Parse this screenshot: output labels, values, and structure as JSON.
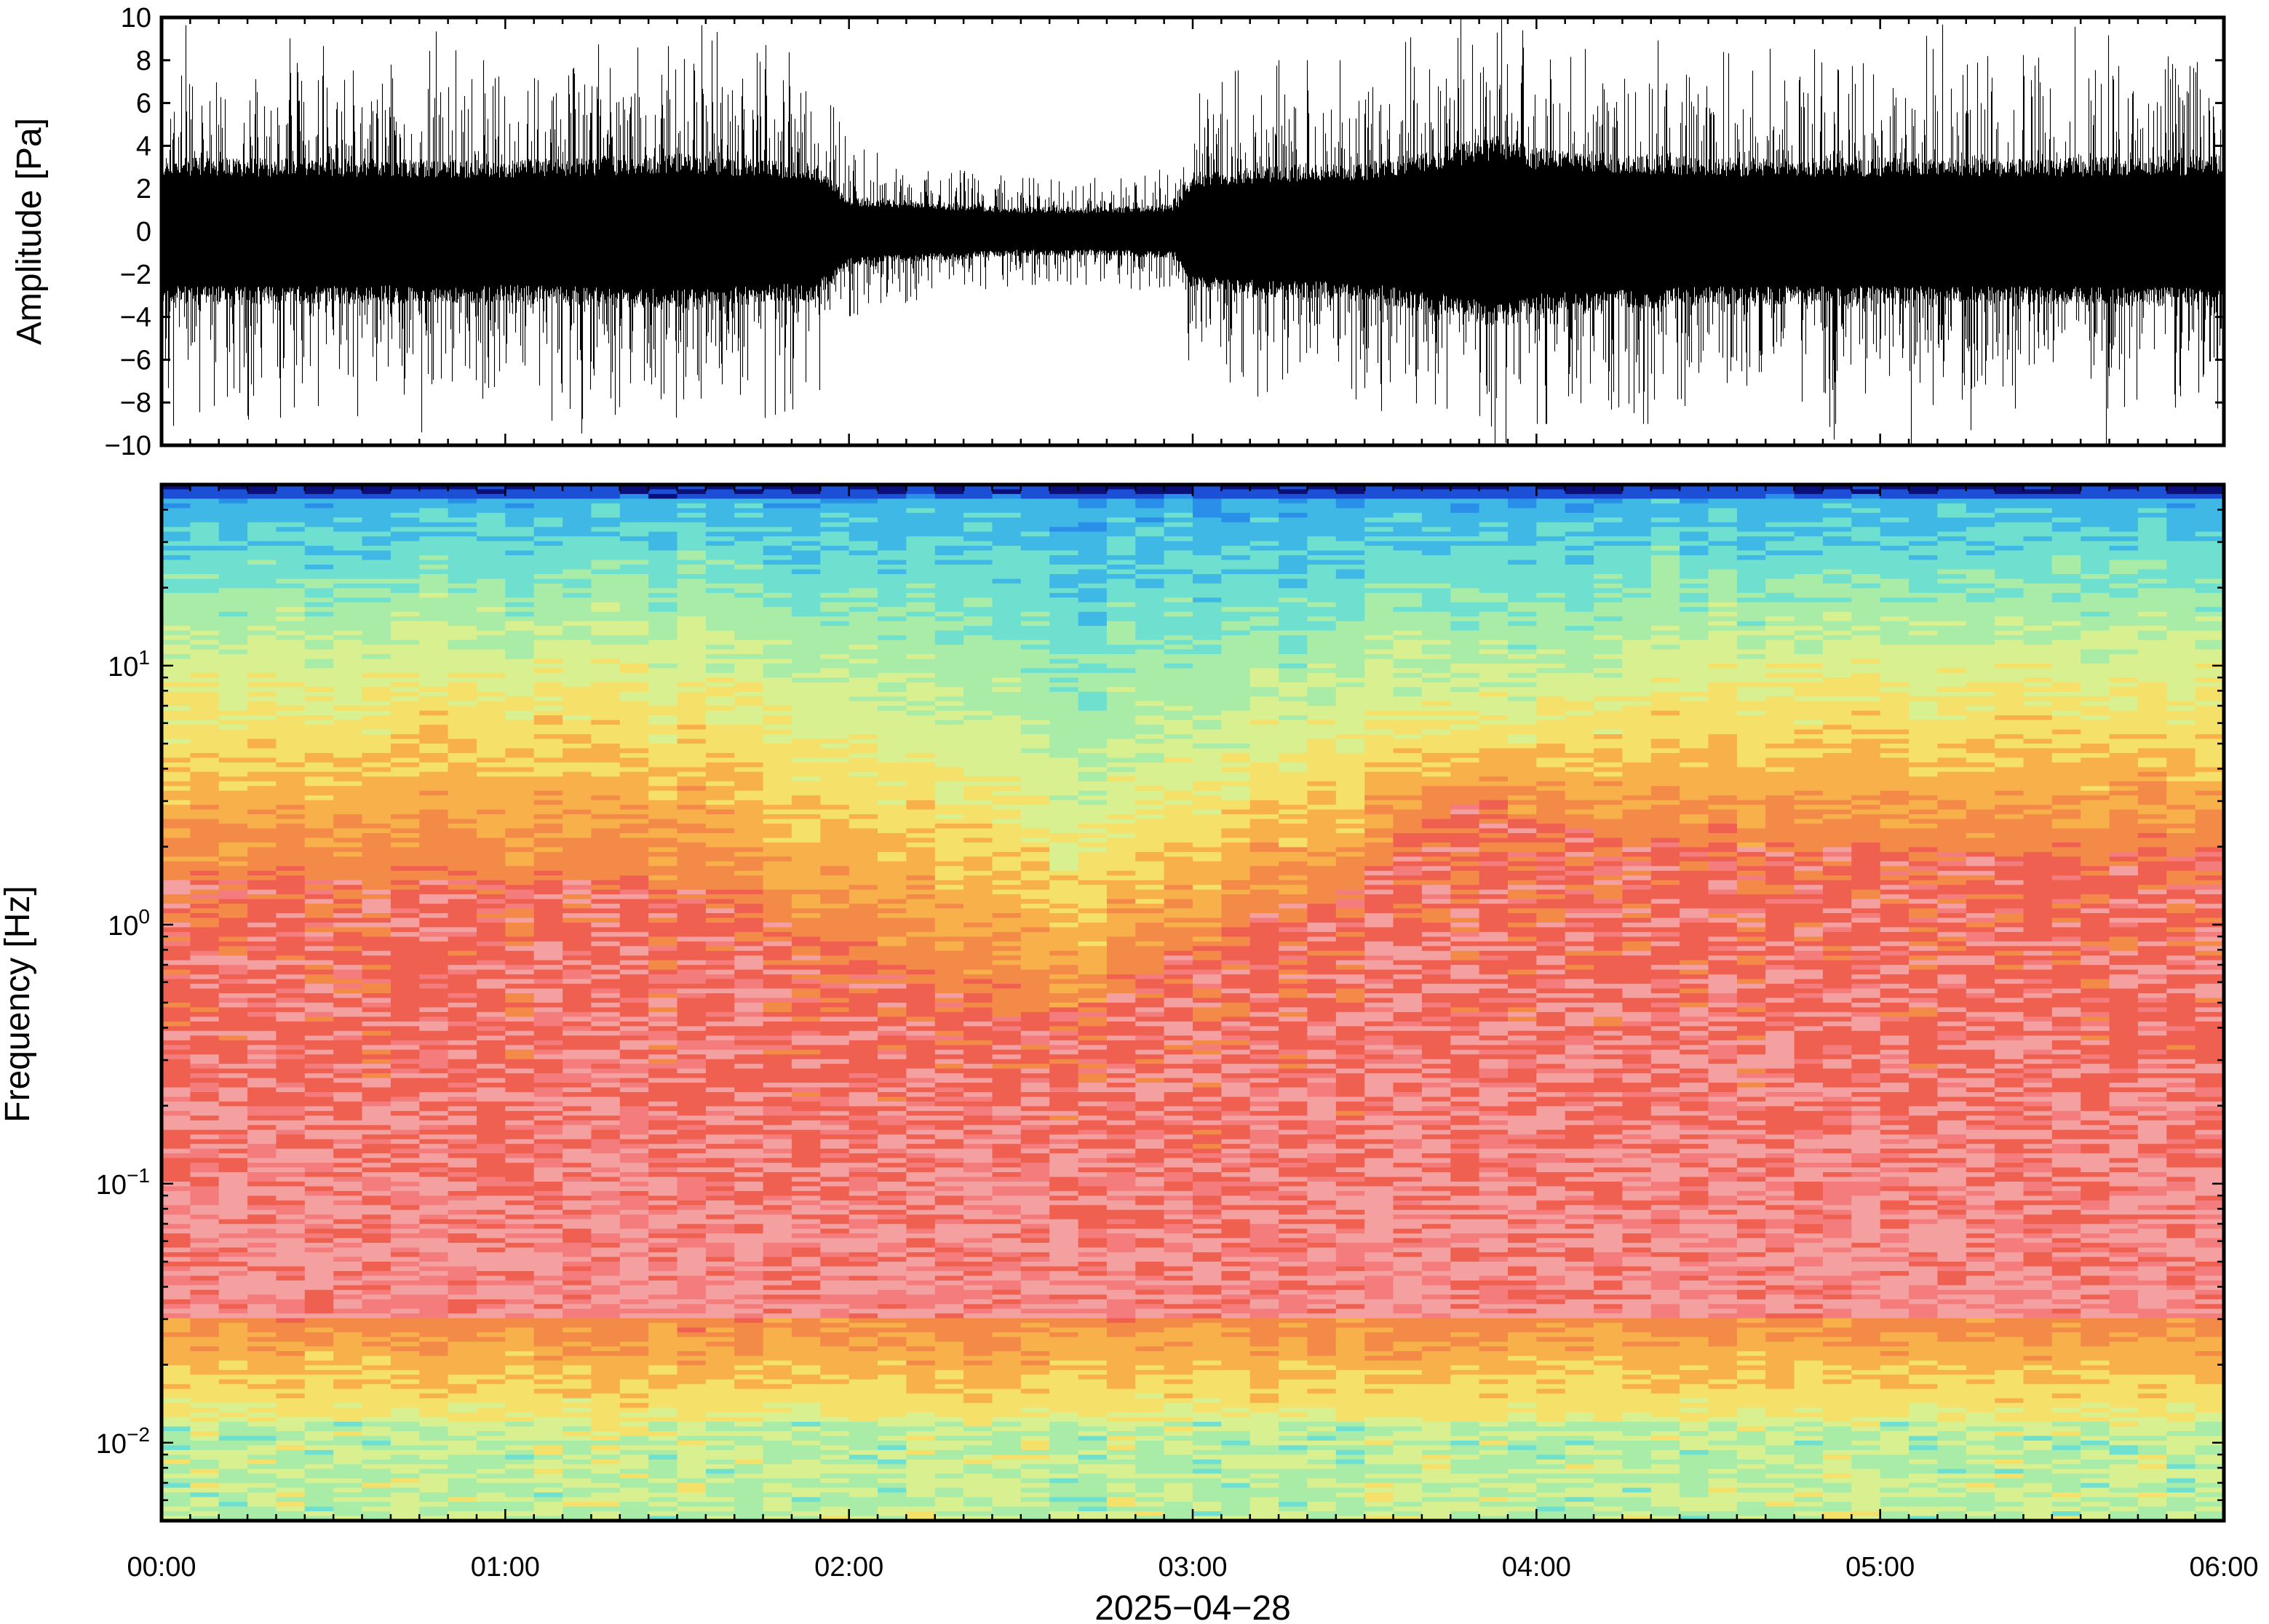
{
  "chart_data": [
    {
      "type": "line",
      "title": "",
      "xlabel": "",
      "ylabel": "Amplitude [Pa]",
      "ylim": [
        -10,
        10
      ],
      "ytick_labels": [
        "10",
        "8",
        "6",
        "4",
        "2",
        "0",
        "−2",
        "−4",
        "−6",
        "−8",
        "−10"
      ],
      "ytick_values": [
        10,
        8,
        6,
        4,
        2,
        0,
        -2,
        -4,
        -6,
        -8,
        -10
      ],
      "xlim": [
        "00:00",
        "06:00"
      ],
      "grid": false,
      "legend": "none",
      "line_color": "#000000",
      "series": [
        {
          "envelope_time_hours": [
            0.0,
            0.5,
            1.0,
            1.5,
            1.9,
            2.0,
            2.25,
            2.5,
            2.75,
            2.95,
            3.0,
            3.25,
            3.5,
            3.75,
            3.9,
            4.0,
            4.5,
            5.0,
            5.5,
            6.0
          ],
          "typical_half_amplitude_pa": [
            3.0,
            3.0,
            2.9,
            3.2,
            2.8,
            1.4,
            1.2,
            1.0,
            1.0,
            1.1,
            2.4,
            2.7,
            2.8,
            3.5,
            4.0,
            3.4,
            3.0,
            3.0,
            3.0,
            3.1
          ],
          "peak_amplitude_pa": [
            10,
            10,
            9,
            10,
            8,
            4,
            3,
            2.5,
            2.5,
            3,
            7,
            8,
            8,
            10,
            10,
            9,
            9,
            10,
            10,
            10
          ]
        }
      ]
    },
    {
      "type": "heatmap",
      "title": "",
      "xlabel": "2025−04−28",
      "ylabel": "Frequency [Hz]",
      "y_scale": "log",
      "ylim": [
        0.005,
        50
      ],
      "ytick_values": [
        10,
        1,
        0.1,
        0.01
      ],
      "ytick_labels": [
        {
          "base": "10",
          "exp": "1"
        },
        {
          "base": "10",
          "exp": "0"
        },
        {
          "base": "10",
          "exp": "−1"
        },
        {
          "base": "10",
          "exp": "−2"
        }
      ],
      "xtick_labels": [
        "00:00",
        "01:00",
        "02:00",
        "03:00",
        "04:00",
        "05:00",
        "06:00"
      ],
      "xtick_hours": [
        0,
        1,
        2,
        3,
        4,
        5,
        6
      ],
      "grid": false,
      "legend": "none",
      "colormap": [
        "#0a0f7a",
        "#1b4fd6",
        "#2a8fe8",
        "#3fb8e6",
        "#6fe0d0",
        "#a8eca8",
        "#d8f090",
        "#f5e06a",
        "#f8b04a",
        "#f48a48",
        "#f06050",
        "#f47c7c",
        "#f4a0a0"
      ],
      "time_hours": [
        0.0,
        0.5,
        1.0,
        1.5,
        2.0,
        2.25,
        2.5,
        2.75,
        3.0,
        3.5,
        3.8,
        4.0,
        4.5,
        5.0,
        5.5,
        6.0
      ],
      "yellow_to_blue_transition_hz": [
        10,
        10,
        11,
        10,
        7,
        5,
        3.5,
        3,
        4.5,
        7,
        7,
        8,
        10,
        11,
        10,
        10
      ],
      "orange_to_red_transition_hz": [
        1.5,
        1.5,
        1.5,
        1.4,
        0.8,
        0.55,
        0.45,
        0.5,
        0.8,
        1.5,
        3,
        2.5,
        2,
        2,
        1.8,
        2
      ],
      "low_frequency_band": {
        "lower_edge_hz": 0.03,
        "color": "orange-yellow with green patches below 0.015 Hz"
      }
    }
  ]
}
